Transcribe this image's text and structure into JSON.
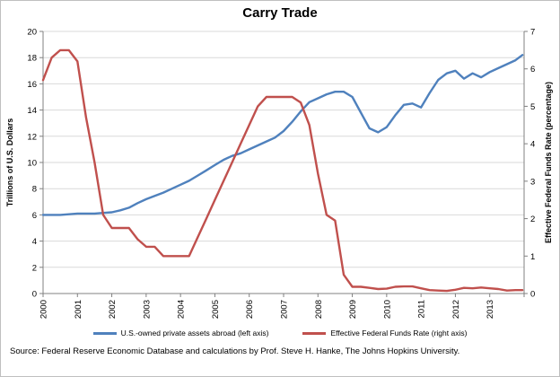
{
  "source": "Source: Federal Reserve Economic Database and calculations by Prof. Steve H. Hanke, The Johns Hopkins University.",
  "chart_data": {
    "type": "line",
    "title": "Carry Trade",
    "grid": "horizontal",
    "legend_position": "bottom",
    "x_min": 2000,
    "x_max": 2014,
    "x_ticks": [
      2000,
      2001,
      2002,
      2003,
      2004,
      2005,
      2006,
      2007,
      2008,
      2009,
      2010,
      2011,
      2012,
      2013
    ],
    "left_axis": {
      "label": "Trillions of U.S. Dollars",
      "min": 0,
      "max": 20,
      "step": 2
    },
    "right_axis": {
      "label": "Effective Federal Funds Rate (percentage)",
      "min": 0,
      "max": 7,
      "step": 1
    },
    "x": [
      2000,
      2000.25,
      2000.5,
      2000.75,
      2001,
      2001.25,
      2001.5,
      2001.75,
      2002,
      2002.25,
      2002.5,
      2002.75,
      2003,
      2003.25,
      2003.5,
      2003.75,
      2004,
      2004.25,
      2004.5,
      2004.75,
      2005,
      2005.25,
      2005.5,
      2005.75,
      2006,
      2006.25,
      2006.5,
      2006.75,
      2007,
      2007.25,
      2007.5,
      2007.75,
      2008,
      2008.25,
      2008.5,
      2008.75,
      2009,
      2009.25,
      2009.5,
      2009.75,
      2010,
      2010.25,
      2010.5,
      2010.75,
      2011,
      2011.25,
      2011.5,
      2011.75,
      2012,
      2012.25,
      2012.5,
      2012.75,
      2013,
      2013.25,
      2013.5,
      2013.75,
      2013.95
    ],
    "series": [
      {
        "id": "assets-abroad",
        "name": "U.S.-owned private assets abroad (left axis)",
        "axis": "left",
        "color": "#4F81BD",
        "values": [
          6.0,
          6.0,
          6.0,
          6.05,
          6.1,
          6.1,
          6.1,
          6.15,
          6.2,
          6.35,
          6.55,
          6.9,
          7.2,
          7.45,
          7.7,
          8.0,
          8.3,
          8.6,
          9.0,
          9.4,
          9.8,
          10.2,
          10.5,
          10.7,
          11.0,
          11.3,
          11.6,
          11.9,
          12.4,
          13.1,
          13.9,
          14.6,
          14.9,
          15.2,
          15.4,
          15.4,
          15.0,
          13.8,
          12.6,
          12.3,
          12.7,
          13.6,
          14.4,
          14.5,
          14.2,
          15.3,
          16.3,
          16.8,
          17.0,
          16.4,
          16.8,
          16.5,
          16.9,
          17.2,
          17.5,
          17.8,
          18.2
        ]
      },
      {
        "id": "fed-funds-rate",
        "name": "Effective Federal Funds Rate (right axis)",
        "axis": "right",
        "color": "#C0504D",
        "values": [
          5.7,
          6.3,
          6.5,
          6.5,
          6.2,
          4.7,
          3.5,
          2.1,
          1.75,
          1.75,
          1.75,
          1.45,
          1.25,
          1.25,
          1.0,
          1.0,
          1.0,
          1.0,
          1.5,
          2.0,
          2.5,
          3.0,
          3.5,
          4.0,
          4.5,
          5.0,
          5.25,
          5.25,
          5.25,
          5.25,
          5.1,
          4.5,
          3.2,
          2.1,
          1.95,
          0.5,
          0.18,
          0.18,
          0.15,
          0.12,
          0.13,
          0.18,
          0.19,
          0.19,
          0.14,
          0.09,
          0.08,
          0.07,
          0.1,
          0.15,
          0.14,
          0.16,
          0.14,
          0.12,
          0.08,
          0.09,
          0.09
        ]
      }
    ]
  }
}
